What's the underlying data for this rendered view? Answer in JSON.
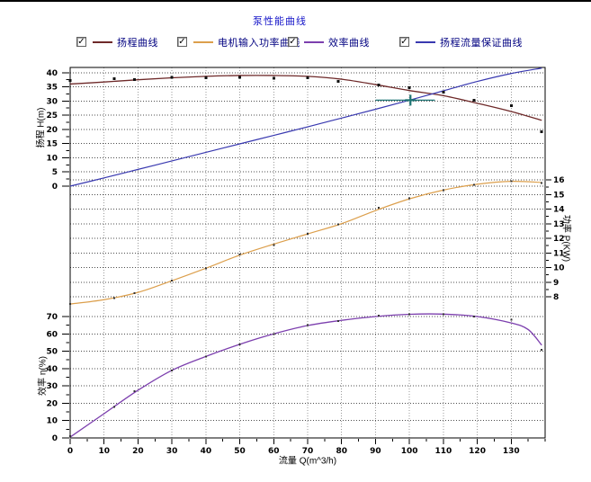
{
  "title": "泵性能曲线",
  "icons": {
    "check": "✓"
  },
  "legend": [
    {
      "label": "扬程曲线",
      "color": "#6e2929",
      "checked": true
    },
    {
      "label": "电机输入功率曲线",
      "color": "#dc9f4c",
      "checked": true
    },
    {
      "label": "效率曲线",
      "color": "#7c3fae",
      "checked": true
    },
    {
      "label": "扬程流量保证曲线",
      "color": "#3939b0",
      "checked": true
    }
  ],
  "chart_data": {
    "type": "line",
    "title": "泵性能曲线",
    "grid": "dotted",
    "axes": {
      "flow": {
        "title": "流量 Q(m^3/h)",
        "min": 0,
        "max": 140,
        "ticks": [
          0,
          10,
          20,
          30,
          40,
          50,
          60,
          70,
          80,
          90,
          100,
          110,
          120,
          130
        ]
      },
      "head": {
        "title": "扬程 H(m)",
        "side": "left-top",
        "min": 0,
        "max": 40,
        "ticks": [
          0,
          5,
          10,
          15,
          20,
          25,
          30,
          35,
          40
        ]
      },
      "power": {
        "title": "功率 P(KW)",
        "side": "right-middle",
        "min": 8,
        "max": 16,
        "ticks": [
          8,
          9,
          10,
          11,
          12,
          13,
          14,
          15,
          16
        ]
      },
      "eff": {
        "title": "效率 η(%)",
        "side": "left-bottom",
        "min": 0,
        "max": 70,
        "ticks": [
          0,
          10,
          20,
          30,
          40,
          50,
          60,
          70
        ]
      }
    },
    "series": [
      {
        "name": "扬程曲线",
        "axis": "head",
        "type": "line",
        "color": "#6e2929",
        "width": 1.3,
        "points": [
          [
            0,
            36.0
          ],
          [
            10,
            36.7
          ],
          [
            20,
            37.5
          ],
          [
            30,
            38.2
          ],
          [
            40,
            38.7
          ],
          [
            50,
            39.0
          ],
          [
            60,
            39.0
          ],
          [
            70,
            38.7
          ],
          [
            80,
            37.7
          ],
          [
            90,
            35.8
          ],
          [
            100,
            33.7
          ],
          [
            110,
            31.9
          ],
          [
            120,
            29.2
          ],
          [
            130,
            26.3
          ],
          [
            139,
            23.2
          ]
        ]
      },
      {
        "name": "电机输入功率曲线",
        "axis": "power",
        "type": "line",
        "color": "#dc9f4c",
        "width": 1.2,
        "points": [
          [
            0,
            7.5
          ],
          [
            10,
            7.8
          ],
          [
            20,
            8.3
          ],
          [
            30,
            9.1
          ],
          [
            40,
            9.95
          ],
          [
            50,
            10.85
          ],
          [
            60,
            11.6
          ],
          [
            70,
            12.3
          ],
          [
            80,
            13.0
          ],
          [
            90,
            13.9
          ],
          [
            100,
            14.7
          ],
          [
            110,
            15.3
          ],
          [
            120,
            15.7
          ],
          [
            130,
            15.9
          ],
          [
            139,
            15.82
          ]
        ]
      },
      {
        "name": "效率曲线",
        "axis": "eff",
        "type": "line",
        "color": "#7c3fae",
        "width": 1.3,
        "points": [
          [
            0,
            0.5
          ],
          [
            10,
            14
          ],
          [
            20,
            27.5
          ],
          [
            30,
            39
          ],
          [
            40,
            47
          ],
          [
            50,
            54
          ],
          [
            60,
            60
          ],
          [
            70,
            64.8
          ],
          [
            80,
            67.8
          ],
          [
            90,
            70
          ],
          [
            100,
            71.3
          ],
          [
            110,
            71.4
          ],
          [
            120,
            70
          ],
          [
            130,
            66.3
          ],
          [
            135,
            62.5
          ],
          [
            139,
            53.5
          ]
        ]
      },
      {
        "name": "扬程流量保证曲线",
        "axis": "head",
        "type": "line",
        "color": "#3939b0",
        "width": 1.2,
        "points": [
          [
            0,
            0
          ],
          [
            10,
            2.9
          ],
          [
            20,
            5.9
          ],
          [
            30,
            8.9
          ],
          [
            40,
            11.9
          ],
          [
            50,
            14.9
          ],
          [
            60,
            17.9
          ],
          [
            70,
            20.9
          ],
          [
            80,
            24.0
          ],
          [
            90,
            27.1
          ],
          [
            100,
            30.3
          ],
          [
            110,
            33.6
          ],
          [
            120,
            36.9
          ],
          [
            130,
            39.7
          ],
          [
            139,
            41.6
          ]
        ]
      },
      {
        "name": "head-test-points",
        "axis": "head",
        "type": "scatter",
        "color": "#111111",
        "marker": "square",
        "size": 3,
        "points": [
          [
            0,
            37.2
          ],
          [
            13,
            37.9
          ],
          [
            19,
            37.6
          ],
          [
            30,
            38.4
          ],
          [
            40,
            38.2
          ],
          [
            50,
            38.4
          ],
          [
            60,
            38.0
          ],
          [
            70,
            38.2
          ],
          [
            79,
            37.0
          ],
          [
            91,
            35.7
          ],
          [
            100,
            34.7
          ],
          [
            110,
            33.2
          ],
          [
            119,
            30.3
          ],
          [
            130,
            28.3
          ],
          [
            139,
            19.1
          ]
        ]
      },
      {
        "name": "power-test-points",
        "axis": "power",
        "type": "scatter",
        "color": "#333333",
        "marker": "square",
        "size": 2,
        "points": [
          [
            0,
            7.5
          ],
          [
            13,
            7.9
          ],
          [
            19,
            8.25
          ],
          [
            30,
            9.1
          ],
          [
            40,
            9.95
          ],
          [
            50,
            10.9
          ],
          [
            60,
            11.55
          ],
          [
            70,
            12.3
          ],
          [
            79,
            12.95
          ],
          [
            91,
            14.1
          ],
          [
            100,
            14.75
          ],
          [
            110,
            15.3
          ],
          [
            119,
            15.65
          ],
          [
            130,
            15.92
          ],
          [
            139,
            15.8
          ]
        ]
      },
      {
        "name": "eff-test-points",
        "axis": "eff",
        "type": "scatter",
        "color": "#333333",
        "marker": "square",
        "size": 2,
        "points": [
          [
            0,
            1
          ],
          [
            13,
            18
          ],
          [
            19,
            27
          ],
          [
            30,
            39
          ],
          [
            40,
            47
          ],
          [
            50,
            54
          ],
          [
            60,
            60
          ],
          [
            70,
            65
          ],
          [
            79,
            67.5
          ],
          [
            91,
            70.4
          ],
          [
            100,
            71.4
          ],
          [
            110,
            71.4
          ],
          [
            119,
            70
          ],
          [
            130,
            68.3
          ],
          [
            139,
            50.7
          ]
        ]
      }
    ],
    "duty_point": {
      "flow": 100.3,
      "head": 30.3,
      "line_from": 90,
      "line_to": 107.5,
      "color": "#1e7474"
    }
  }
}
